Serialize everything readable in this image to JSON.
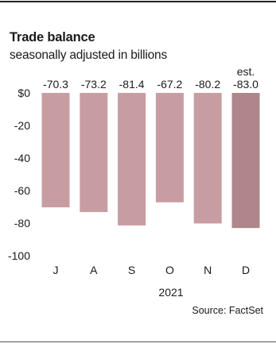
{
  "chart_data": {
    "type": "bar",
    "title": "Trade balance",
    "subtitle": "seasonally adjusted in billions",
    "categories": [
      "J",
      "A",
      "S",
      "O",
      "N",
      "D"
    ],
    "values": [
      -70.3,
      -73.2,
      -81.4,
      -67.2,
      -80.2,
      -83.0
    ],
    "value_labels": [
      "-70.3",
      "-73.2",
      "-81.4",
      "-67.2",
      "-80.2",
      "-83.0"
    ],
    "estimate_label": "est.",
    "estimate_index": 5,
    "xlabel": "2021",
    "ylabel": "",
    "ylim": [
      -100,
      0
    ],
    "y_ticks": [
      0,
      -20,
      -40,
      -60,
      -80,
      -100
    ],
    "y_tick_labels": [
      "$0",
      "-20",
      "-40",
      "-60",
      "-80",
      "-100"
    ],
    "grid": false,
    "colors": {
      "bar": "#c89da2",
      "bar_estimate": "#b0868b"
    },
    "source": "Source: FactSet"
  }
}
